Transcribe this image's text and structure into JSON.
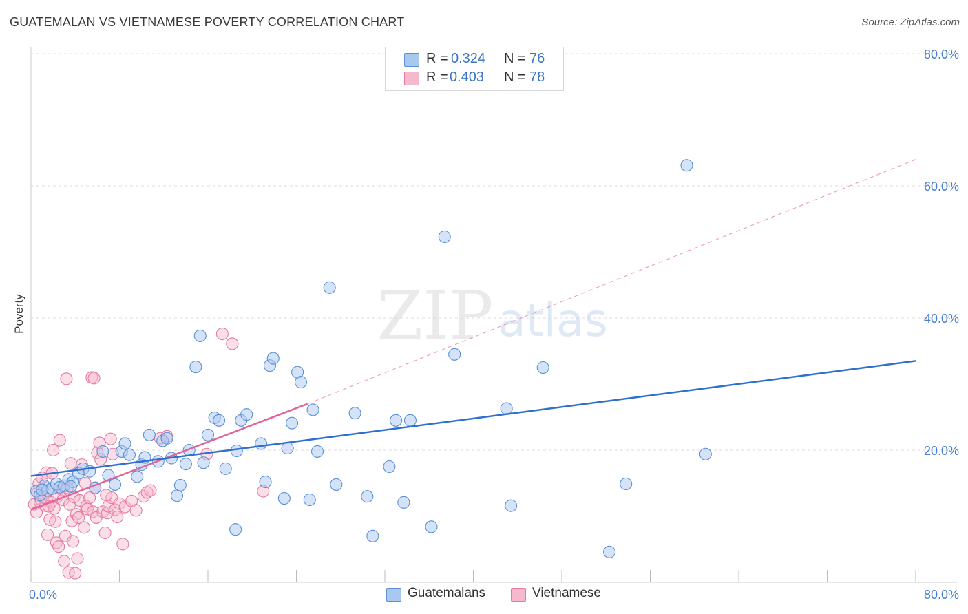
{
  "header": {
    "title": "GUATEMALAN VS VIETNAMESE POVERTY CORRELATION CHART",
    "source": "Source: ZipAtlas.com"
  },
  "watermark": {
    "zip": "ZIP",
    "atlas": "atlas"
  },
  "legend": {
    "rows": [
      {
        "r_label": "R =",
        "r_value": "0.324",
        "n_label": "N =",
        "n_value": "76"
      },
      {
        "r_label": "R =",
        "r_value": "0.403",
        "n_label": "N =",
        "n_value": "78"
      }
    ]
  },
  "bottom_legend": {
    "series1": "Guatemalans",
    "series2": "Vietnamese"
  },
  "colors": {
    "blue_fill": "#a9c8f0",
    "blue_stroke": "#5b8fd6",
    "blue_line": "#2f6fcf",
    "pink_fill": "#f6b8cc",
    "pink_stroke": "#e57aa0",
    "pink_line": "#e0639a",
    "grid": "#dddddd",
    "axis_text": "#4a7fd0"
  },
  "chart_data": {
    "type": "scatter",
    "title": "GUATEMALAN VS VIETNAMESE POVERTY CORRELATION CHART",
    "ylabel": "Poverty",
    "xlim": [
      0,
      80
    ],
    "ylim": [
      0,
      80
    ],
    "x_tick_labels": [
      "0.0%",
      "80.0%"
    ],
    "y_tick_labels": [
      "20.0%",
      "40.0%",
      "60.0%",
      "80.0%"
    ],
    "y_ticks": [
      20,
      40,
      60,
      80
    ],
    "grid": "horizontal dashed",
    "legend_position": "top-center",
    "series": [
      {
        "name": "Guatemalans",
        "R": 0.324,
        "N": 76,
        "trend": {
          "x": [
            0,
            80
          ],
          "y": [
            16.1,
            33.5
          ]
        },
        "points": [
          [
            0.5,
            13.8
          ],
          [
            0.8,
            13.2
          ],
          [
            1.2,
            14.6
          ],
          [
            1.5,
            13.9
          ],
          [
            1.9,
            14.2
          ],
          [
            2.3,
            14.9
          ],
          [
            2.6,
            14.4
          ],
          [
            3.0,
            14.6
          ],
          [
            3.4,
            15.6
          ],
          [
            3.8,
            15.2
          ],
          [
            4.3,
            16.5
          ],
          [
            4.7,
            17.2
          ],
          [
            5.3,
            16.8
          ],
          [
            5.8,
            14.3
          ],
          [
            6.5,
            19.8
          ],
          [
            7.0,
            16.2
          ],
          [
            7.6,
            14.8
          ],
          [
            8.2,
            19.8
          ],
          [
            8.5,
            21.0
          ],
          [
            8.9,
            19.3
          ],
          [
            9.6,
            16.0
          ],
          [
            10.0,
            17.8
          ],
          [
            10.3,
            18.9
          ],
          [
            10.7,
            22.3
          ],
          [
            11.5,
            18.3
          ],
          [
            11.9,
            21.4
          ],
          [
            12.3,
            21.8
          ],
          [
            12.7,
            18.8
          ],
          [
            13.2,
            13.1
          ],
          [
            13.5,
            14.7
          ],
          [
            14.0,
            17.9
          ],
          [
            14.3,
            20.0
          ],
          [
            14.9,
            32.6
          ],
          [
            15.3,
            37.3
          ],
          [
            15.6,
            18.1
          ],
          [
            16.0,
            22.3
          ],
          [
            16.6,
            24.9
          ],
          [
            17.0,
            24.5
          ],
          [
            17.6,
            17.2
          ],
          [
            18.5,
            8.0
          ],
          [
            18.6,
            19.9
          ],
          [
            19.0,
            24.5
          ],
          [
            19.5,
            25.4
          ],
          [
            20.8,
            21.0
          ],
          [
            21.2,
            15.2
          ],
          [
            21.6,
            32.8
          ],
          [
            21.9,
            33.9
          ],
          [
            22.9,
            12.7
          ],
          [
            23.2,
            20.3
          ],
          [
            23.6,
            24.1
          ],
          [
            24.1,
            31.8
          ],
          [
            24.4,
            30.3
          ],
          [
            25.2,
            12.5
          ],
          [
            25.5,
            26.1
          ],
          [
            25.9,
            19.8
          ],
          [
            27.0,
            44.6
          ],
          [
            27.6,
            14.8
          ],
          [
            29.3,
            25.6
          ],
          [
            30.4,
            13.0
          ],
          [
            30.9,
            7.0
          ],
          [
            32.4,
            17.5
          ],
          [
            33.0,
            24.5
          ],
          [
            33.7,
            12.1
          ],
          [
            34.3,
            24.5
          ],
          [
            36.2,
            8.4
          ],
          [
            37.4,
            52.3
          ],
          [
            38.3,
            34.5
          ],
          [
            43.0,
            26.3
          ],
          [
            43.4,
            11.6
          ],
          [
            46.3,
            32.5
          ],
          [
            52.3,
            4.6
          ],
          [
            53.8,
            14.9
          ],
          [
            59.3,
            63.1
          ],
          [
            61.0,
            19.4
          ],
          [
            3.6,
            14.5
          ],
          [
            1.0,
            14.0
          ]
        ]
      },
      {
        "name": "Vietnamese",
        "R": 0.403,
        "N": 78,
        "trend_solid": {
          "x": [
            0,
            25
          ],
          "y": [
            11.0,
            27.0
          ]
        },
        "trend_dashed": {
          "x": [
            25,
            80
          ],
          "y": [
            27.0,
            64.0
          ]
        },
        "points": [
          [
            0.3,
            11.8
          ],
          [
            0.5,
            10.6
          ],
          [
            0.6,
            13.6
          ],
          [
            0.8,
            12.2
          ],
          [
            1.0,
            15.8
          ],
          [
            1.1,
            13.0
          ],
          [
            1.3,
            11.6
          ],
          [
            1.4,
            16.6
          ],
          [
            1.5,
            7.2
          ],
          [
            1.7,
            9.5
          ],
          [
            1.8,
            12.1
          ],
          [
            1.9,
            16.5
          ],
          [
            2.0,
            20.0
          ],
          [
            2.1,
            11.2
          ],
          [
            2.3,
            6.0
          ],
          [
            2.4,
            13.0
          ],
          [
            2.5,
            5.4
          ],
          [
            2.6,
            21.5
          ],
          [
            2.8,
            14.0
          ],
          [
            2.9,
            12.5
          ],
          [
            3.0,
            3.2
          ],
          [
            3.1,
            7.0
          ],
          [
            3.2,
            30.8
          ],
          [
            3.3,
            14.3
          ],
          [
            3.4,
            1.5
          ],
          [
            3.5,
            11.8
          ],
          [
            3.6,
            18.0
          ],
          [
            3.7,
            9.3
          ],
          [
            3.8,
            6.2
          ],
          [
            3.9,
            12.9
          ],
          [
            4.0,
            1.4
          ],
          [
            4.1,
            10.3
          ],
          [
            4.2,
            3.6
          ],
          [
            4.3,
            9.8
          ],
          [
            4.4,
            12.4
          ],
          [
            4.6,
            17.8
          ],
          [
            4.8,
            8.3
          ],
          [
            5.0,
            11.5
          ],
          [
            5.1,
            11.1
          ],
          [
            5.3,
            12.8
          ],
          [
            5.5,
            31.0
          ],
          [
            5.6,
            10.7
          ],
          [
            5.7,
            30.9
          ],
          [
            5.8,
            14.3
          ],
          [
            5.9,
            9.8
          ],
          [
            6.0,
            19.6
          ],
          [
            6.2,
            21.1
          ],
          [
            6.3,
            18.6
          ],
          [
            6.5,
            10.7
          ],
          [
            6.7,
            7.5
          ],
          [
            6.9,
            10.5
          ],
          [
            7.0,
            11.5
          ],
          [
            7.2,
            21.7
          ],
          [
            7.3,
            12.8
          ],
          [
            7.4,
            19.4
          ],
          [
            7.6,
            11.0
          ],
          [
            7.8,
            9.9
          ],
          [
            8.0,
            11.9
          ],
          [
            8.3,
            5.8
          ],
          [
            8.5,
            11.4
          ],
          [
            9.1,
            12.3
          ],
          [
            9.5,
            10.9
          ],
          [
            10.2,
            13.0
          ],
          [
            10.5,
            13.6
          ],
          [
            10.8,
            13.9
          ],
          [
            11.7,
            21.8
          ],
          [
            12.3,
            22.1
          ],
          [
            15.9,
            19.4
          ],
          [
            17.3,
            37.6
          ],
          [
            18.2,
            36.1
          ],
          [
            21.0,
            13.8
          ],
          [
            0.9,
            12.5
          ],
          [
            1.6,
            11.5
          ],
          [
            2.2,
            9.2
          ],
          [
            4.9,
            15.0
          ],
          [
            6.8,
            13.2
          ],
          [
            0.7,
            14.9
          ],
          [
            1.2,
            12.8
          ]
        ]
      }
    ]
  }
}
